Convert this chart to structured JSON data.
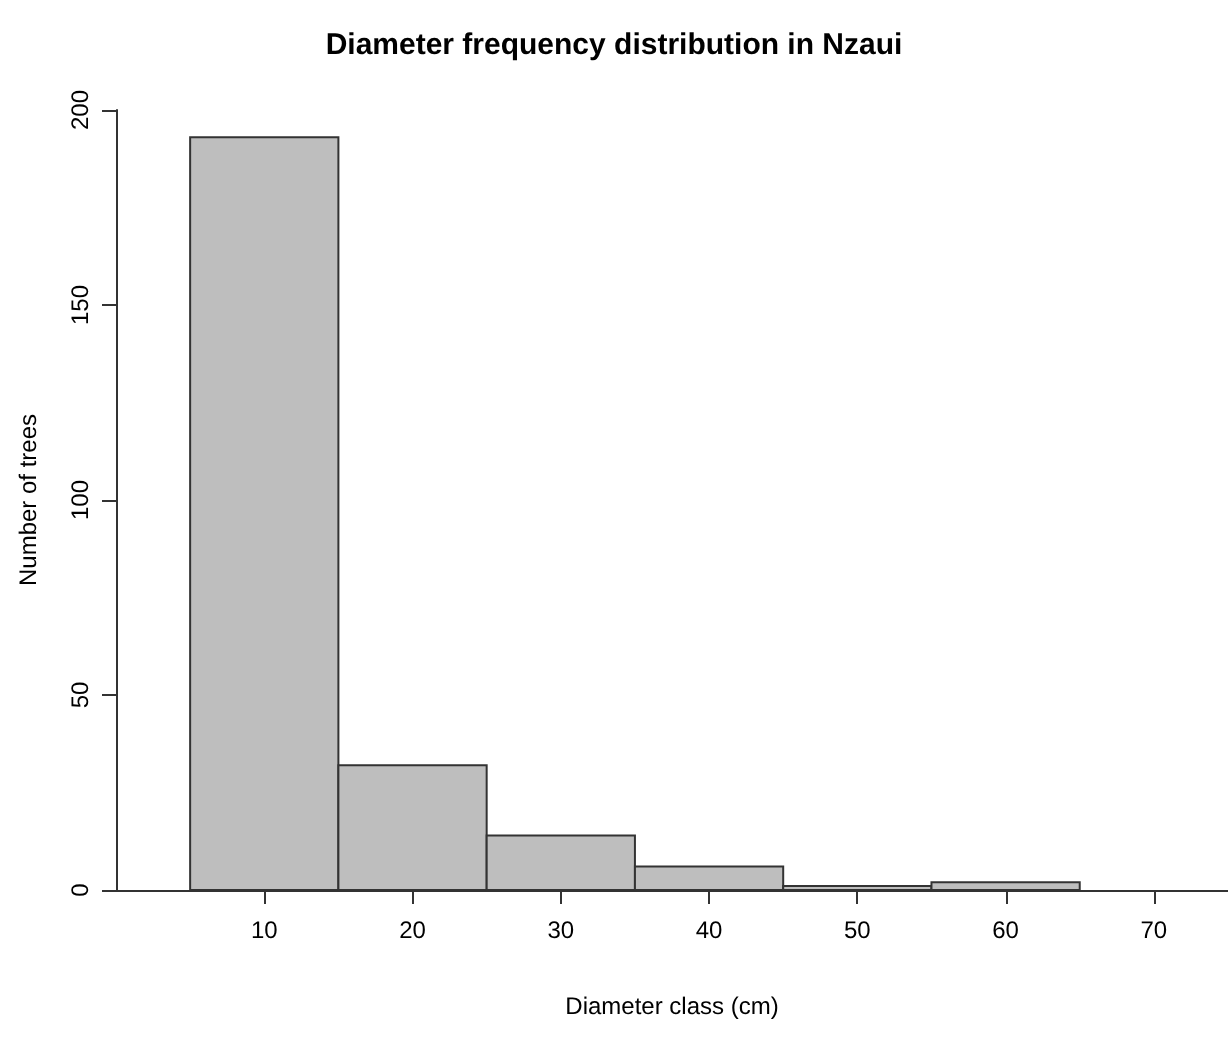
{
  "chart_data": {
    "type": "histogram",
    "title": "Diameter frequency distribution in Nzaui",
    "xlabel": "Diameter class (cm)",
    "ylabel": "Number of trees",
    "bins": [
      5,
      15,
      25,
      35,
      45,
      55,
      65
    ],
    "values": [
      193,
      32,
      14,
      6,
      1,
      2
    ],
    "color": "#bebebe",
    "xlim": [
      0,
      75
    ],
    "xticks": [
      10,
      20,
      30,
      40,
      50,
      60,
      70
    ],
    "ylim": [
      0,
      200
    ],
    "yticks": [
      0,
      50,
      100,
      150,
      200
    ],
    "grid": false
  }
}
